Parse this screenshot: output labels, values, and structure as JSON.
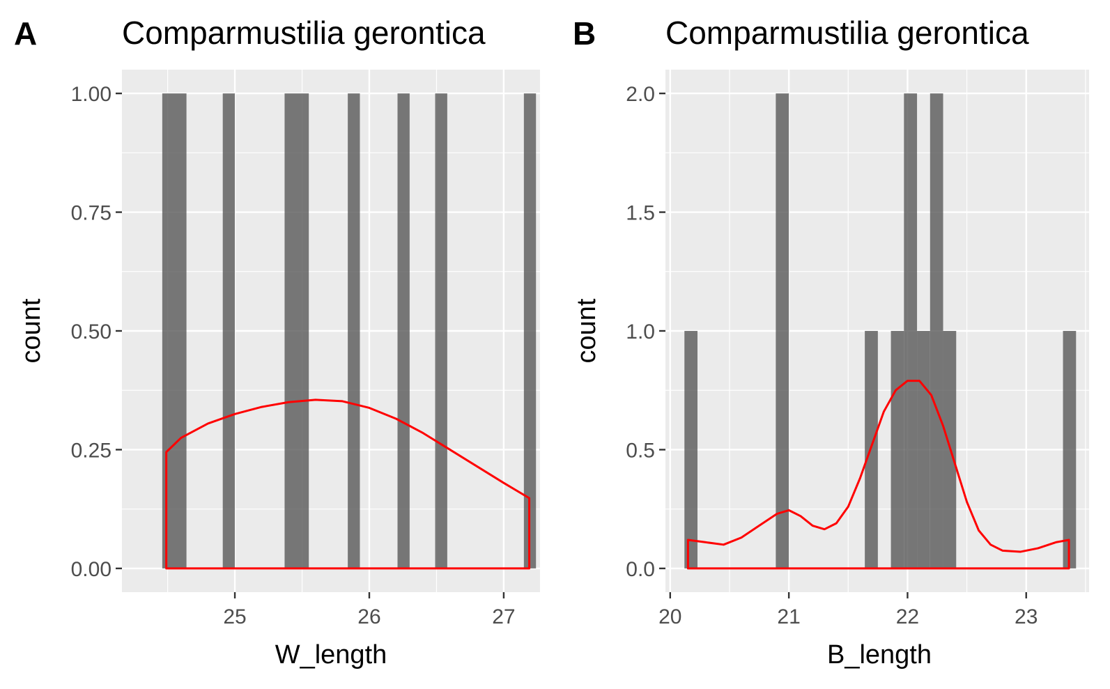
{
  "chart_data": [
    {
      "type": "bar",
      "panel_tag": "A",
      "title": "Comparmustilia gerontica",
      "xlabel": "W_length",
      "ylabel": "count",
      "xlim": [
        24.16,
        27.27
      ],
      "ylim": [
        -0.05,
        1.05
      ],
      "xticks": [
        25,
        26,
        27
      ],
      "xtick_labels": [
        "25",
        "26",
        "27"
      ],
      "yticks": [
        0,
        0.25,
        0.5,
        0.75,
        1.0
      ],
      "ytick_labels": [
        "0.00",
        "0.25",
        "0.50",
        "0.75",
        "1.00"
      ],
      "grid": true,
      "bar_color": "#595959",
      "bars": [
        {
          "x0": 24.46,
          "x1": 24.64,
          "count": 1
        },
        {
          "x0": 24.91,
          "x1": 25.0,
          "count": 1
        },
        {
          "x0": 25.37,
          "x1": 25.55,
          "count": 1
        },
        {
          "x0": 25.84,
          "x1": 25.93,
          "count": 1
        },
        {
          "x0": 26.21,
          "x1": 26.3,
          "count": 1
        },
        {
          "x0": 26.49,
          "x1": 26.58,
          "count": 1
        },
        {
          "x0": 27.15,
          "x1": 27.24,
          "count": 1
        }
      ],
      "density_color": "#ff0000",
      "density": {
        "x": [
          24.49,
          24.6,
          24.8,
          25.0,
          25.2,
          25.4,
          25.6,
          25.8,
          26.0,
          26.2,
          26.4,
          26.6,
          26.8,
          27.0,
          27.19
        ],
        "y": [
          0.245,
          0.275,
          0.305,
          0.325,
          0.34,
          0.35,
          0.355,
          0.352,
          0.338,
          0.315,
          0.285,
          0.25,
          0.215,
          0.18,
          0.148
        ]
      }
    },
    {
      "type": "bar",
      "panel_tag": "B",
      "title": "Comparmustilia gerontica",
      "xlabel": "B_length",
      "ylabel": "count",
      "xlim": [
        19.96,
        23.53
      ],
      "ylim": [
        -0.1,
        2.1
      ],
      "xticks": [
        20,
        21,
        22,
        23
      ],
      "xtick_labels": [
        "20",
        "21",
        "22",
        "23"
      ],
      "yticks": [
        0,
        0.5,
        1.0,
        1.5,
        2.0
      ],
      "ytick_labels": [
        "0.0",
        "0.5",
        "1.0",
        "1.5",
        "2.0"
      ],
      "grid": true,
      "bar_color": "#595959",
      "bars": [
        {
          "x0": 20.12,
          "x1": 20.23,
          "count": 1
        },
        {
          "x0": 20.89,
          "x1": 21.0,
          "count": 2
        },
        {
          "x0": 21.64,
          "x1": 21.75,
          "count": 1
        },
        {
          "x0": 21.86,
          "x1": 21.97,
          "count": 1
        },
        {
          "x0": 21.97,
          "x1": 22.08,
          "count": 2
        },
        {
          "x0": 22.08,
          "x1": 22.19,
          "count": 1
        },
        {
          "x0": 22.19,
          "x1": 22.3,
          "count": 2
        },
        {
          "x0": 22.3,
          "x1": 22.41,
          "count": 1
        },
        {
          "x0": 23.31,
          "x1": 23.42,
          "count": 1
        }
      ],
      "density_color": "#ff0000",
      "density": {
        "x": [
          20.15,
          20.3,
          20.45,
          20.6,
          20.75,
          20.9,
          21.0,
          21.1,
          21.2,
          21.3,
          21.4,
          21.5,
          21.6,
          21.7,
          21.8,
          21.9,
          22.0,
          22.1,
          22.2,
          22.3,
          22.4,
          22.5,
          22.6,
          22.7,
          22.8,
          22.95,
          23.1,
          23.25,
          23.36
        ],
        "y": [
          0.12,
          0.11,
          0.1,
          0.13,
          0.18,
          0.23,
          0.245,
          0.22,
          0.18,
          0.165,
          0.19,
          0.26,
          0.38,
          0.52,
          0.66,
          0.75,
          0.79,
          0.79,
          0.73,
          0.6,
          0.44,
          0.28,
          0.16,
          0.1,
          0.075,
          0.07,
          0.085,
          0.11,
          0.12
        ]
      }
    }
  ]
}
